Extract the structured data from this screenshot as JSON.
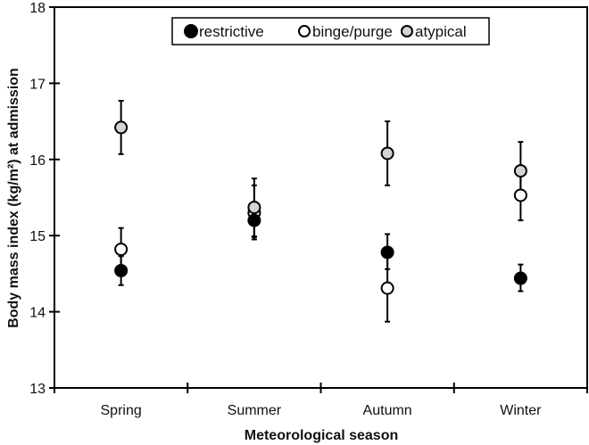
{
  "chart_data": {
    "type": "scatter",
    "title": "",
    "xlabel": "Meteorological season",
    "ylabel": "Body mass index (kg/m²) at admission",
    "categories": [
      "Spring",
      "Summer",
      "Autumn",
      "Winter"
    ],
    "ylim": [
      13,
      18
    ],
    "yticks": [
      13,
      14,
      15,
      16,
      17,
      18
    ],
    "grid": false,
    "legend_position": "top-center",
    "series": [
      {
        "name": "restrictive",
        "marker_fill": "#000000",
        "values": [
          14.54,
          15.2,
          14.78,
          14.44
        ],
        "err_low": [
          14.35,
          14.98,
          14.56,
          14.27
        ],
        "err_high": [
          14.73,
          15.42,
          15.02,
          14.62
        ]
      },
      {
        "name": "binge/purge",
        "marker_fill": "#ffffff",
        "values": [
          14.82,
          15.3,
          14.31,
          15.53
        ],
        "err_low": [
          14.55,
          14.95,
          13.87,
          15.2
        ],
        "err_high": [
          15.1,
          15.66,
          14.75,
          15.86
        ]
      },
      {
        "name": "atypical",
        "marker_fill": "#d3d3d3",
        "values": [
          16.42,
          15.37,
          16.08,
          15.85
        ],
        "err_low": [
          16.07,
          14.99,
          15.66,
          15.49
        ],
        "err_high": [
          16.77,
          15.75,
          16.5,
          16.23
        ]
      }
    ]
  },
  "legend": {
    "items": [
      {
        "label": "restrictive",
        "color": "#000000"
      },
      {
        "label": "binge/purge",
        "color": "#ffffff"
      },
      {
        "label": "atypical",
        "color": "#d3d3d3"
      }
    ]
  },
  "axes": {
    "y_title": "Body mass index (kg/m²) at admission",
    "x_title": "Meteorological season",
    "y_tick_labels": [
      "13",
      "14",
      "15",
      "16",
      "17",
      "18"
    ],
    "x_tick_labels": [
      "Spring",
      "Summer",
      "Autumn",
      "Winter"
    ]
  }
}
